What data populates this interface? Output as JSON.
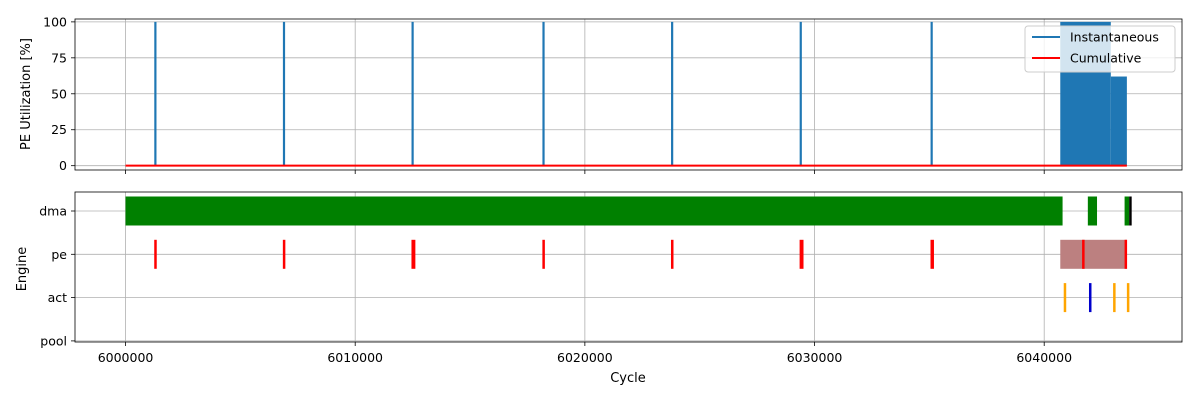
{
  "chart_data": [
    {
      "type": "line",
      "ylabel": "PE Utilization [%]",
      "xlabel": "",
      "xlim": [
        5997800,
        6046000
      ],
      "ylim": [
        -3,
        102
      ],
      "yticks": [
        0,
        25,
        50,
        75,
        100
      ],
      "xticks": [
        6000000,
        6010000,
        6020000,
        6030000,
        6040000
      ],
      "grid": true,
      "legend_position": "top-right",
      "colors": {
        "instantaneous": "#1f77b4",
        "cumulative": "#ff0000"
      },
      "series": [
        {
          "name": "Instantaneous",
          "spikes_at_100": [
            6001300,
            6006900,
            6012500,
            6018200,
            6023800,
            6029400,
            6035100
          ],
          "blocks": [
            {
              "x0": 6040700,
              "x1": 6042900,
              "value": 100
            },
            {
              "x0": 6042900,
              "x1": 6043600,
              "value": 62
            }
          ]
        },
        {
          "name": "Cumulative",
          "x": [
            6000000,
            6043600
          ],
          "values": [
            0,
            0
          ]
        }
      ]
    },
    {
      "type": "timeline",
      "xlabel": "Cycle",
      "ylabel": "Engine",
      "xlim": [
        5997800,
        6046000
      ],
      "xticks": [
        6000000,
        6010000,
        6020000,
        6030000,
        6040000
      ],
      "categories": [
        "dma",
        "pe",
        "act",
        "pool"
      ],
      "grid": true,
      "lanes": {
        "dma": [
          {
            "x0": 6000000,
            "x1": 6040800,
            "color": "#008000"
          },
          {
            "x0": 6041900,
            "x1": 6042300,
            "color": "#008000"
          },
          {
            "x0": 6043500,
            "x1": 6043700,
            "color": "#008000"
          },
          {
            "x0": 6043700,
            "x1": 6043800,
            "color": "#000000"
          }
        ],
        "pe": [
          {
            "x0": 6001250,
            "x1": 6001350,
            "color": "#ff0000"
          },
          {
            "x0": 6006850,
            "x1": 6006950,
            "color": "#ff0000"
          },
          {
            "x0": 6012450,
            "x1": 6012620,
            "color": "#ff0000"
          },
          {
            "x0": 6018150,
            "x1": 6018250,
            "color": "#ff0000"
          },
          {
            "x0": 6023750,
            "x1": 6023850,
            "color": "#ff0000"
          },
          {
            "x0": 6029350,
            "x1": 6029520,
            "color": "#ff0000"
          },
          {
            "x0": 6035050,
            "x1": 6035200,
            "color": "#ff0000"
          },
          {
            "x0": 6040700,
            "x1": 6043600,
            "color": "#bc8080"
          },
          {
            "x0": 6041650,
            "x1": 6041700,
            "color": "#ff0000"
          },
          {
            "x0": 6043500,
            "x1": 6043600,
            "color": "#ff0000"
          }
        ],
        "act": [
          {
            "x0": 6040850,
            "x1": 6040950,
            "color": "#ffa500"
          },
          {
            "x0": 6041950,
            "x1": 6042050,
            "color": "#0000cc"
          },
          {
            "x0": 6043000,
            "x1": 6043100,
            "color": "#ffa500"
          },
          {
            "x0": 6043600,
            "x1": 6043700,
            "color": "#ffa500"
          }
        ],
        "pool": []
      }
    }
  ]
}
